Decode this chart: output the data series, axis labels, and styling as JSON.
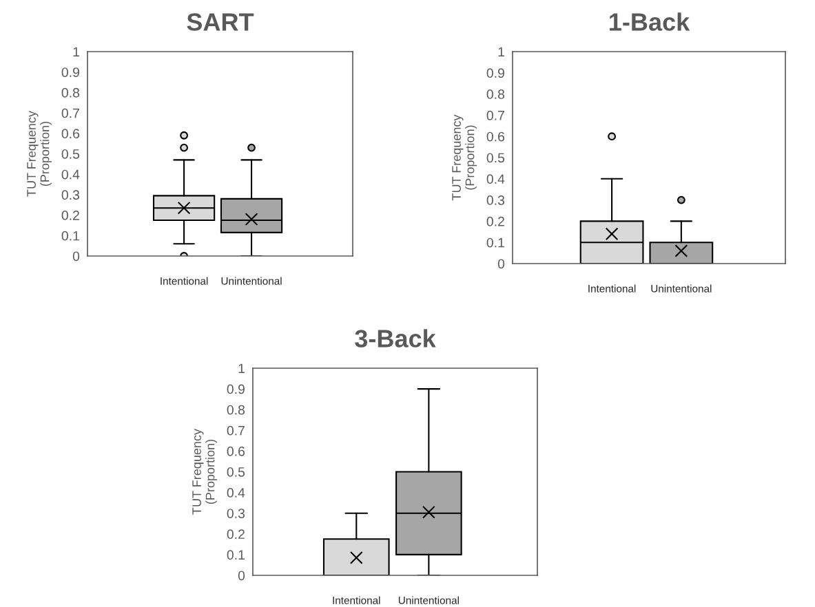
{
  "chart_data": [
    {
      "type": "box",
      "title": "SART",
      "ylabel": "TUT Frequency\n(Proportion)",
      "categories": [
        "Intentional",
        "Unintentional"
      ],
      "colors": [
        "#d9d9d9",
        "#a6a6a6"
      ],
      "ylim": [
        0,
        1
      ],
      "yticks": [
        0,
        0.1,
        0.2,
        0.3,
        0.4,
        0.5,
        0.6,
        0.7,
        0.8,
        0.9,
        1
      ],
      "grid": false,
      "boxes": [
        {
          "low": 0.06,
          "q1": 0.175,
          "median": 0.235,
          "q3": 0.295,
          "high": 0.47,
          "mean": 0.235,
          "outliers": [
            0.59,
            0.53,
            0
          ]
        },
        {
          "low": 0,
          "q1": 0.115,
          "median": 0.175,
          "q3": 0.28,
          "high": 0.47,
          "mean": 0.18,
          "outliers": [
            0.53
          ]
        }
      ]
    },
    {
      "type": "box",
      "title": "1-Back",
      "ylabel": "TUT Frequency\n(Proportion)",
      "categories": [
        "Intentional",
        "Unintentional"
      ],
      "colors": [
        "#d9d9d9",
        "#a6a6a6"
      ],
      "ylim": [
        0,
        1
      ],
      "yticks": [
        0,
        0.1,
        0.2,
        0.3,
        0.4,
        0.5,
        0.6,
        0.7,
        0.8,
        0.9,
        1
      ],
      "grid": false,
      "boxes": [
        {
          "low": 0,
          "q1": 0,
          "median": 0.1,
          "q3": 0.2,
          "high": 0.4,
          "mean": 0.14,
          "outliers": [
            0.6
          ]
        },
        {
          "low": 0,
          "q1": 0,
          "median": 0,
          "q3": 0.1,
          "high": 0.2,
          "mean": 0.06,
          "outliers": [
            0.3
          ]
        }
      ]
    },
    {
      "type": "box",
      "title": "3-Back",
      "ylabel": "TUT Frequency\n(Proportion)",
      "categories": [
        "Intentional",
        "Unintentional"
      ],
      "colors": [
        "#d9d9d9",
        "#a6a6a6"
      ],
      "ylim": [
        0,
        1
      ],
      "yticks": [
        0,
        0.1,
        0.2,
        0.3,
        0.4,
        0.5,
        0.6,
        0.7,
        0.8,
        0.9,
        1
      ],
      "grid": false,
      "boxes": [
        {
          "low": 0,
          "q1": 0,
          "median": 0,
          "q3": 0.175,
          "high": 0.3,
          "mean": 0.085
        },
        {
          "low": 0,
          "q1": 0.1,
          "median": 0.3,
          "q3": 0.5,
          "high": 0.9,
          "mean": 0.305
        }
      ]
    }
  ]
}
